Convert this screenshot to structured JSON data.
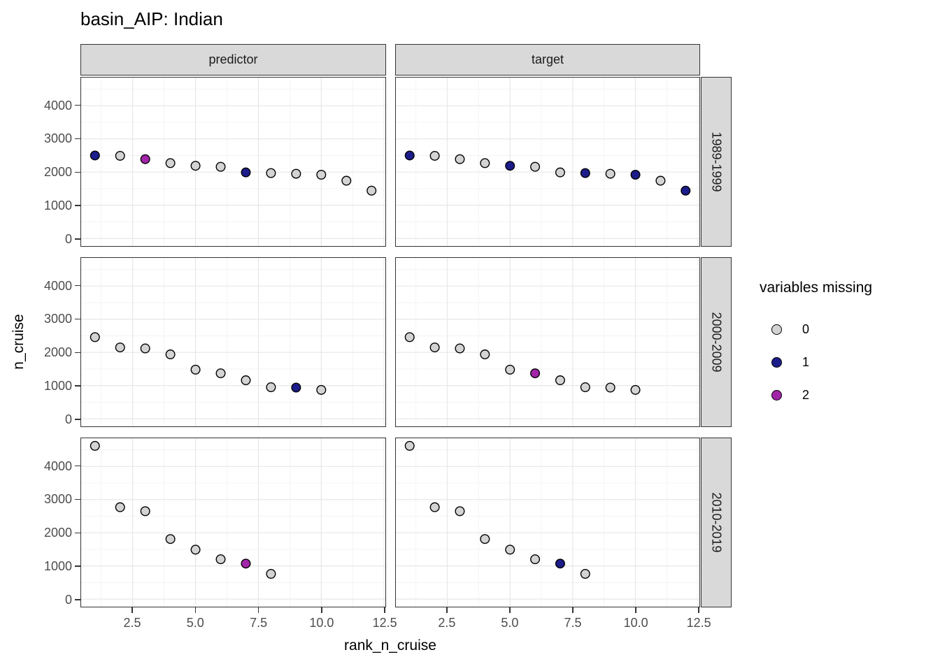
{
  "chart_data": {
    "type": "scatter",
    "title": "basin_AIP: Indian",
    "xlabel": "rank_n_cruise",
    "ylabel": "n_cruise",
    "facet_cols": [
      "predictor",
      "target"
    ],
    "facet_rows": [
      "1989-1999",
      "2000-2009",
      "2010-2019"
    ],
    "xlim": [
      0.45,
      12.55
    ],
    "ylim": [
      -230,
      4850
    ],
    "x_ticks": [
      2.5,
      5.0,
      7.5,
      10.0,
      12.5
    ],
    "x_tick_labels": [
      "2.5",
      "5.0",
      "7.5",
      "10.0",
      "12.5"
    ],
    "x_minor": [
      1.25,
      3.75,
      6.25,
      8.75,
      11.25
    ],
    "y_ticks": [
      0,
      1000,
      2000,
      3000,
      4000
    ],
    "y_tick_labels": [
      "0",
      "1000",
      "2000",
      "3000",
      "4000"
    ],
    "y_minor": [
      500,
      1500,
      2500,
      3500,
      4500
    ],
    "grid": "on",
    "legend_position": "right",
    "legend": {
      "title": "variables missing",
      "entries": [
        {
          "label": "0",
          "color": "#d3d3d3"
        },
        {
          "label": "1",
          "color": "#1c1c8a"
        },
        {
          "label": "2",
          "color": "#a224a8"
        }
      ]
    },
    "point_colors_by_missing": {
      "0": "#d3d3d3",
      "1": "#1c1c8a",
      "2": "#a224a8"
    },
    "panels": [
      {
        "col": "predictor",
        "row": "1989-1999",
        "x": [
          1,
          2,
          3,
          4,
          5,
          6,
          7,
          8,
          9,
          10,
          11,
          12
        ],
        "y": [
          2500,
          2490,
          2390,
          2270,
          2190,
          2160,
          1990,
          1970,
          1950,
          1920,
          1740,
          1440
        ],
        "missing": [
          1,
          0,
          2,
          0,
          0,
          0,
          1,
          0,
          0,
          0,
          0,
          0
        ]
      },
      {
        "col": "target",
        "row": "1989-1999",
        "x": [
          1,
          2,
          3,
          4,
          5,
          6,
          7,
          8,
          9,
          10,
          11,
          12
        ],
        "y": [
          2500,
          2490,
          2390,
          2270,
          2190,
          2160,
          1990,
          1970,
          1950,
          1920,
          1740,
          1440
        ],
        "missing": [
          1,
          0,
          0,
          0,
          1,
          0,
          0,
          1,
          0,
          1,
          0,
          1
        ]
      },
      {
        "col": "predictor",
        "row": "2000-2009",
        "x": [
          1,
          2,
          3,
          4,
          5,
          6,
          7,
          8,
          9,
          10
        ],
        "y": [
          2460,
          2150,
          2120,
          1940,
          1480,
          1370,
          1160,
          950,
          940,
          870
        ],
        "missing": [
          0,
          0,
          0,
          0,
          0,
          0,
          0,
          0,
          1,
          0
        ]
      },
      {
        "col": "target",
        "row": "2000-2009",
        "x": [
          1,
          2,
          3,
          4,
          5,
          6,
          7,
          8,
          9,
          10
        ],
        "y": [
          2460,
          2150,
          2120,
          1940,
          1480,
          1370,
          1160,
          950,
          940,
          870
        ],
        "missing": [
          0,
          0,
          0,
          0,
          0,
          2,
          0,
          0,
          0,
          0
        ]
      },
      {
        "col": "predictor",
        "row": "2010-2019",
        "x": [
          1,
          2,
          3,
          4,
          5,
          6,
          7,
          8
        ],
        "y": [
          4620,
          2770,
          2650,
          1810,
          1490,
          1200,
          1070,
          760
        ],
        "missing": [
          0,
          0,
          0,
          0,
          0,
          0,
          2,
          0
        ]
      },
      {
        "col": "target",
        "row": "2010-2019",
        "x": [
          1,
          2,
          3,
          4,
          5,
          6,
          7,
          8
        ],
        "y": [
          4620,
          2770,
          2650,
          1810,
          1490,
          1200,
          1070,
          760
        ],
        "missing": [
          0,
          0,
          0,
          0,
          0,
          0,
          1,
          0
        ]
      }
    ]
  }
}
